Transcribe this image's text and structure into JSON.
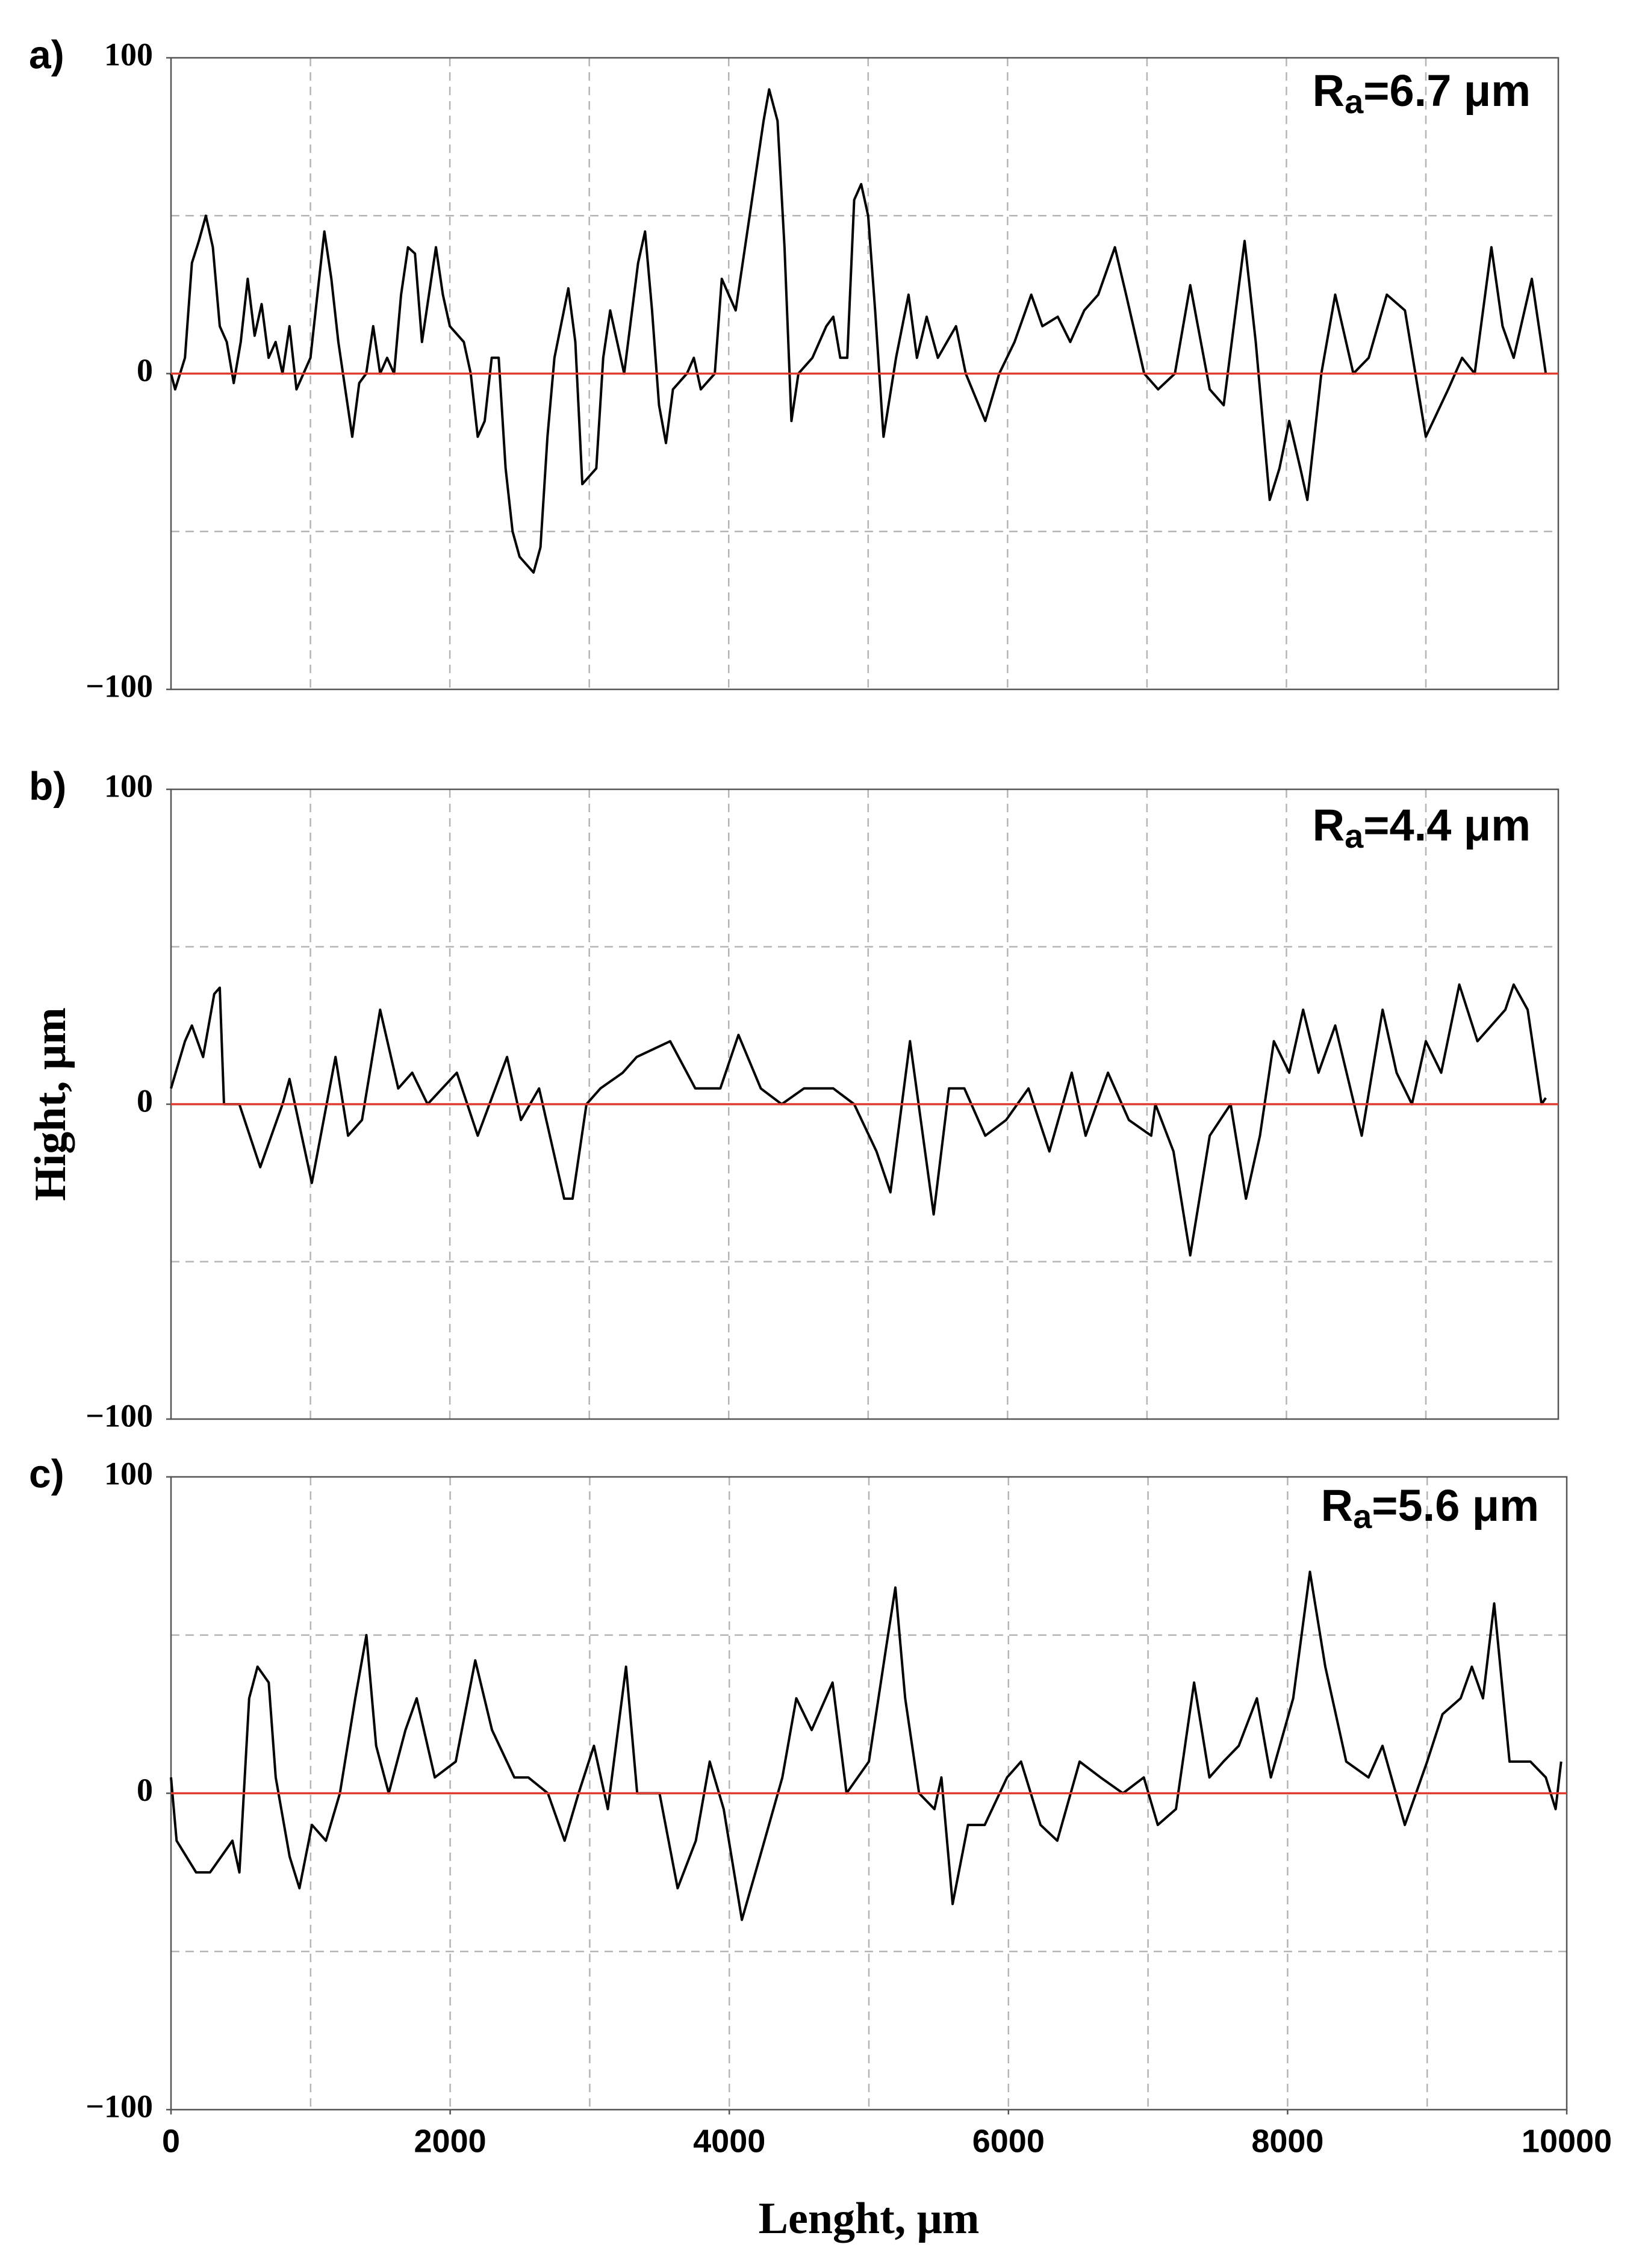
{
  "chart_data": [
    {
      "type": "line",
      "panel_label": "a)",
      "annotation": [
        "R",
        "a",
        "=6.7 μm"
      ],
      "x": [
        0,
        30,
        100,
        150,
        200,
        250,
        300,
        350,
        400,
        450,
        500,
        550,
        600,
        650,
        700,
        750,
        800,
        850,
        900,
        1000,
        1050,
        1100,
        1150,
        1200,
        1300,
        1350,
        1400,
        1450,
        1500,
        1550,
        1600,
        1650,
        1700,
        1750,
        1800,
        1850,
        1900,
        1950,
        2000,
        2100,
        2150,
        2200,
        2250,
        2300,
        2350,
        2400,
        2450,
        2500,
        2600,
        2650,
        2700,
        2750,
        2850,
        2900,
        2950,
        3050,
        3100,
        3150,
        3200,
        3250,
        3350,
        3400,
        3450,
        3500,
        3550,
        3600,
        3700,
        3750,
        3800,
        3900,
        3950,
        4000,
        4050,
        4100,
        4150,
        4250,
        4290,
        4350,
        4400,
        4450,
        4500,
        4600,
        4700,
        4750,
        4800,
        4850,
        4900,
        4950,
        5000,
        5050,
        5110,
        5200,
        5290,
        5350,
        5420,
        5500,
        5630,
        5700,
        5840,
        5940,
        6050,
        6170,
        6250,
        6360,
        6450,
        6550,
        6650,
        6770,
        6850,
        6980,
        7080,
        7200,
        7310,
        7450,
        7550,
        7700,
        7780,
        7880,
        7950,
        8020,
        8100,
        8150,
        8250,
        8350,
        8480,
        8590,
        8720,
        8850,
        9000,
        9160,
        9260,
        9350,
        9470,
        9550,
        9630,
        9760,
        9860
      ],
      "series": [
        {
          "color": "#000000",
          "values": [
            0,
            -5,
            5,
            35,
            42,
            50,
            40,
            15,
            10,
            -3,
            10,
            30,
            12,
            22,
            5,
            10,
            0,
            15,
            -5,
            5,
            25,
            45,
            30,
            10,
            -20,
            -3,
            0,
            15,
            0,
            5,
            0,
            25,
            40,
            38,
            10,
            25,
            40,
            25,
            15,
            10,
            0,
            -20,
            -15,
            5,
            5,
            -30,
            -50,
            -58,
            -63,
            -55,
            -20,
            5,
            27,
            10,
            -35,
            -30,
            5,
            20,
            10,
            0,
            35,
            45,
            20,
            -10,
            -22,
            -5,
            0,
            5,
            -5,
            0,
            30,
            25,
            20,
            35,
            50,
            80,
            90,
            80,
            40,
            -15,
            0,
            5,
            15,
            18,
            5,
            5,
            55,
            60,
            50,
            20,
            -20,
            5,
            25,
            5,
            18,
            5,
            15,
            0,
            -15,
            0,
            10,
            25,
            15,
            18,
            10,
            20,
            25,
            40,
            25,
            0,
            -5,
            0,
            28,
            -5,
            -10,
            42,
            10,
            -40,
            -30,
            -15,
            -30,
            -40,
            0,
            25,
            0,
            5,
            25,
            20,
            -20,
            -5,
            5,
            0,
            40,
            15,
            5,
            30,
            0
          ]
        }
      ],
      "xlim": [
        0,
        9950
      ],
      "ylim": [
        -100,
        100
      ],
      "yticks": [
        {
          "value": -100,
          "label": "−100"
        },
        0,
        100
      ],
      "xgrid": [
        1000,
        2000,
        3000,
        4000,
        5000,
        6000,
        7000,
        8000,
        9000
      ],
      "ygrid": [
        -50,
        0,
        50
      ],
      "hline": {
        "value": 0,
        "color": "#e03c31"
      }
    },
    {
      "type": "line",
      "panel_label": "b)",
      "annotation": [
        "R",
        "a",
        "=4.4 μm"
      ],
      "ylabel": "Hight, μm",
      "x": [
        0,
        100,
        150,
        230,
        310,
        350,
        380,
        490,
        640,
        800,
        850,
        1010,
        1180,
        1270,
        1370,
        1500,
        1630,
        1730,
        1840,
        2050,
        2200,
        2410,
        2510,
        2640,
        2820,
        2880,
        2980,
        3080,
        3240,
        3340,
        3580,
        3760,
        3940,
        4070,
        4230,
        4380,
        4540,
        4750,
        4900,
        5060,
        5160,
        5300,
        5470,
        5580,
        5690,
        5840,
        5990,
        6150,
        6300,
        6460,
        6560,
        6720,
        6870,
        7030,
        7060,
        7190,
        7310,
        7450,
        7600,
        7710,
        7810,
        7910,
        8020,
        8120,
        8230,
        8350,
        8540,
        8690,
        8790,
        8900,
        9000,
        9110,
        9240,
        9370,
        9570,
        9630,
        9730,
        9830,
        9860
      ],
      "series": [
        {
          "color": "#000000",
          "values": [
            5,
            20,
            25,
            15,
            35,
            37,
            0,
            0,
            -20,
            0,
            8,
            -25,
            15,
            -10,
            -5,
            30,
            5,
            10,
            0,
            10,
            -10,
            15,
            -5,
            5,
            -30,
            -30,
            0,
            5,
            10,
            15,
            20,
            5,
            5,
            22,
            5,
            0,
            5,
            5,
            0,
            -15,
            -28,
            20,
            -35,
            5,
            5,
            -10,
            -5,
            5,
            -15,
            10,
            -10,
            10,
            -5,
            -10,
            0,
            -15,
            -48,
            -10,
            0,
            -30,
            -10,
            20,
            10,
            30,
            10,
            25,
            -10,
            30,
            10,
            0,
            20,
            10,
            38,
            20,
            30,
            38,
            30,
            0,
            2
          ]
        }
      ],
      "xlim": [
        0,
        9950
      ],
      "ylim": [
        -100,
        100
      ],
      "yticks": [
        {
          "value": -100,
          "label": "−100"
        },
        0,
        100
      ],
      "xgrid": [
        1000,
        2000,
        3000,
        4000,
        5000,
        6000,
        7000,
        8000,
        9000
      ],
      "ygrid": [
        -50,
        0,
        50
      ],
      "hline": {
        "value": 0,
        "color": "#e03c31"
      }
    },
    {
      "type": "line",
      "panel_label": "c)",
      "annotation": [
        "R",
        "a",
        "=5.6 μm"
      ],
      "xlabel": "Lenght, μm",
      "x": [
        0,
        40,
        180,
        280,
        440,
        490,
        560,
        620,
        700,
        750,
        850,
        920,
        1010,
        1110,
        1210,
        1320,
        1400,
        1470,
        1560,
        1680,
        1760,
        1890,
        2040,
        2180,
        2300,
        2460,
        2560,
        2700,
        2820,
        2920,
        3030,
        3130,
        3260,
        3340,
        3500,
        3630,
        3760,
        3860,
        3960,
        4090,
        4220,
        4380,
        4480,
        4590,
        4740,
        4840,
        5000,
        5120,
        5190,
        5260,
        5360,
        5470,
        5520,
        5600,
        5710,
        5830,
        5990,
        6090,
        6230,
        6350,
        6510,
        6660,
        6820,
        6970,
        7070,
        7200,
        7330,
        7440,
        7540,
        7650,
        7780,
        7880,
        8040,
        8160,
        8270,
        8420,
        8580,
        8680,
        8840,
        9000,
        9110,
        9240,
        9320,
        9400,
        9480,
        9590,
        9740,
        9850,
        9920,
        9960
      ],
      "series": [
        {
          "color": "#000000",
          "values": [
            5,
            -15,
            -25,
            -25,
            -15,
            -25,
            30,
            40,
            35,
            5,
            -20,
            -30,
            -10,
            -15,
            0,
            30,
            50,
            15,
            0,
            20,
            30,
            5,
            10,
            42,
            20,
            5,
            5,
            0,
            -15,
            0,
            15,
            -5,
            40,
            0,
            0,
            -30,
            -15,
            10,
            -5,
            -40,
            -20,
            5,
            30,
            20,
            35,
            0,
            10,
            45,
            65,
            30,
            0,
            -5,
            5,
            -35,
            -10,
            -10,
            5,
            10,
            -10,
            -15,
            10,
            5,
            0,
            5,
            -10,
            -5,
            35,
            5,
            10,
            15,
            30,
            5,
            30,
            70,
            40,
            10,
            5,
            15,
            -10,
            10,
            25,
            30,
            40,
            30,
            60,
            10,
            10,
            5,
            -5,
            10
          ]
        }
      ],
      "xlim": [
        0,
        10000
      ],
      "ylim": [
        -100,
        100
      ],
      "yticks": [
        {
          "value": -100,
          "label": "−100"
        },
        0,
        100
      ],
      "xticks": [
        0,
        2000,
        4000,
        6000,
        8000,
        10000
      ],
      "xgrid": [
        1000,
        2000,
        3000,
        4000,
        5000,
        6000,
        7000,
        8000,
        9000
      ],
      "ygrid": [
        -50,
        0,
        50
      ],
      "hline": {
        "value": 0,
        "color": "#e03c31"
      }
    }
  ]
}
